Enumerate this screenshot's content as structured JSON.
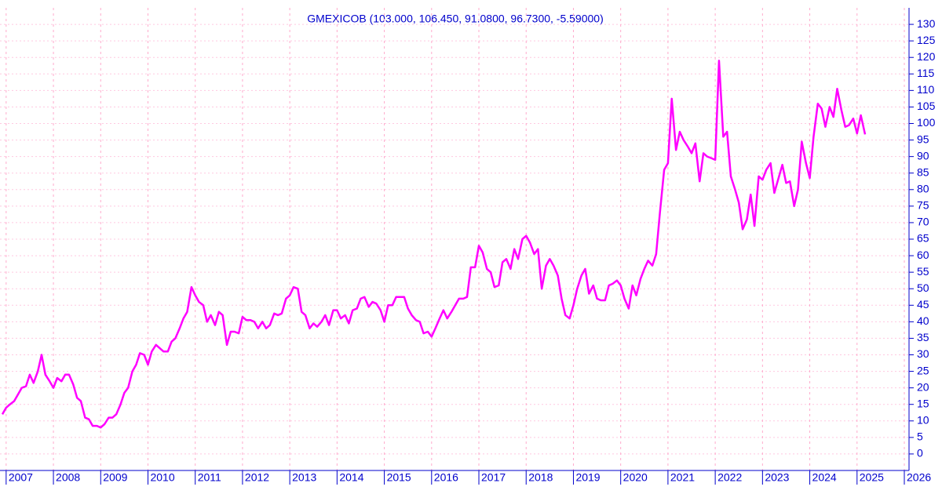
{
  "chart_data": {
    "type": "line",
    "title": "GMEXICOB (103.000, 106.450, 91.0800, 96.7300, -5.59000)",
    "x": [
      2006.92,
      2007.0,
      2007.08,
      2007.17,
      2007.25,
      2007.33,
      2007.42,
      2007.5,
      2007.58,
      2007.67,
      2007.75,
      2007.83,
      2007.92,
      2008.0,
      2008.08,
      2008.17,
      2008.25,
      2008.33,
      2008.42,
      2008.5,
      2008.58,
      2008.67,
      2008.75,
      2008.83,
      2008.92,
      2009.0,
      2009.08,
      2009.17,
      2009.25,
      2009.33,
      2009.42,
      2009.5,
      2009.58,
      2009.67,
      2009.75,
      2009.83,
      2009.92,
      2010.0,
      2010.08,
      2010.17,
      2010.25,
      2010.33,
      2010.42,
      2010.5,
      2010.58,
      2010.67,
      2010.75,
      2010.83,
      2010.92,
      2011.0,
      2011.08,
      2011.17,
      2011.25,
      2011.33,
      2011.42,
      2011.5,
      2011.58,
      2011.67,
      2011.75,
      2011.83,
      2011.92,
      2012.0,
      2012.08,
      2012.17,
      2012.25,
      2012.33,
      2012.42,
      2012.5,
      2012.58,
      2012.67,
      2012.75,
      2012.83,
      2012.92,
      2013.0,
      2013.08,
      2013.17,
      2013.25,
      2013.33,
      2013.42,
      2013.5,
      2013.58,
      2013.67,
      2013.75,
      2013.83,
      2013.92,
      2014.0,
      2014.08,
      2014.17,
      2014.25,
      2014.33,
      2014.42,
      2014.5,
      2014.58,
      2014.67,
      2014.75,
      2014.83,
      2014.92,
      2015.0,
      2015.08,
      2015.17,
      2015.25,
      2015.33,
      2015.42,
      2015.5,
      2015.58,
      2015.67,
      2015.75,
      2015.83,
      2015.92,
      2016.0,
      2016.08,
      2016.17,
      2016.25,
      2016.33,
      2016.42,
      2016.5,
      2016.58,
      2016.67,
      2016.75,
      2016.83,
      2016.92,
      2017.0,
      2017.08,
      2017.17,
      2017.25,
      2017.33,
      2017.42,
      2017.5,
      2017.58,
      2017.67,
      2017.75,
      2017.83,
      2017.92,
      2018.0,
      2018.08,
      2018.17,
      2018.25,
      2018.33,
      2018.42,
      2018.5,
      2018.58,
      2018.67,
      2018.75,
      2018.83,
      2018.92,
      2019.0,
      2019.08,
      2019.17,
      2019.25,
      2019.33,
      2019.42,
      2019.5,
      2019.58,
      2019.67,
      2019.75,
      2019.83,
      2019.92,
      2020.0,
      2020.08,
      2020.17,
      2020.25,
      2020.33,
      2020.42,
      2020.5,
      2020.58,
      2020.67,
      2020.75,
      2020.83,
      2020.92,
      2021.0,
      2021.08,
      2021.17,
      2021.25,
      2021.33,
      2021.42,
      2021.5,
      2021.58,
      2021.67,
      2021.75,
      2021.83,
      2021.92,
      2022.0,
      2022.08,
      2022.17,
      2022.25,
      2022.33,
      2022.42,
      2022.5,
      2022.58,
      2022.67,
      2022.75,
      2022.83,
      2022.92,
      2023.0,
      2023.08,
      2023.17,
      2023.25,
      2023.33,
      2023.42,
      2023.5,
      2023.58,
      2023.67,
      2023.75,
      2023.83,
      2023.92,
      2024.0,
      2024.08,
      2024.17,
      2024.25,
      2024.33,
      2024.42,
      2024.5,
      2024.58,
      2024.67,
      2024.75,
      2024.83,
      2024.92,
      2025.0,
      2025.08,
      2025.17
    ],
    "series": [
      {
        "name": "GMEXICOB",
        "color": "#ff00ff",
        "values": [
          12,
          14,
          15,
          16,
          18,
          20,
          20.5,
          24,
          21.5,
          25,
          30,
          24,
          22,
          20,
          23,
          22,
          24,
          24,
          21,
          17,
          16,
          11,
          10.5,
          8.5,
          8.5,
          8,
          9,
          11,
          11,
          12,
          15,
          18.5,
          20,
          25,
          27,
          30.5,
          30,
          27,
          31,
          33,
          32,
          31,
          31,
          34,
          35,
          38,
          41,
          43,
          50.5,
          48,
          46,
          45,
          40,
          42,
          39,
          43,
          42,
          33,
          37,
          37,
          36.5,
          41.5,
          40.5,
          40.5,
          40,
          38,
          40,
          38,
          39,
          42.5,
          42,
          42.5,
          47,
          48,
          50.5,
          50,
          43,
          42,
          38,
          39.5,
          38.5,
          40,
          42,
          39,
          43.5,
          43.5,
          41,
          42,
          39.5,
          43.5,
          44,
          47,
          47.5,
          44.5,
          46,
          45.5,
          43.5,
          40,
          45,
          45,
          47.5,
          47.5,
          47.5,
          44,
          42,
          40.5,
          40,
          36.5,
          37,
          35.5,
          38,
          41,
          43.5,
          41,
          43,
          45,
          47,
          47,
          47.5,
          56.5,
          56.5,
          63,
          61,
          56,
          55,
          50.5,
          51,
          58,
          59,
          56,
          62,
          59,
          65,
          66,
          64,
          60.5,
          62,
          50,
          57,
          59,
          57,
          54,
          47,
          42,
          41,
          45,
          50,
          54,
          56,
          48.5,
          51,
          47,
          46.5,
          46.5,
          51,
          51.5,
          52.5,
          51,
          47,
          44,
          51,
          48,
          53,
          56,
          58.5,
          57,
          60.5,
          73,
          86,
          88,
          107.5,
          92,
          97.5,
          95,
          93,
          91,
          94,
          82.5,
          91,
          90,
          89.5,
          89,
          119,
          96,
          97.5,
          84,
          80,
          76,
          68,
          71,
          78.5,
          69,
          84,
          83,
          86,
          88,
          79,
          83,
          87.5,
          82,
          82.5,
          75,
          80,
          94.5,
          88,
          83.5,
          96,
          106,
          104.5,
          99,
          105,
          102,
          110.5,
          104,
          99,
          99.5,
          101.5,
          97,
          102.5,
          96.7
        ]
      }
    ],
    "xlim": [
      2006.87,
      2026.0
    ],
    "xticks": [
      2007,
      2008,
      2009,
      2010,
      2011,
      2012,
      2013,
      2014,
      2015,
      2016,
      2017,
      2018,
      2019,
      2020,
      2021,
      2022,
      2023,
      2024,
      2025,
      2026
    ],
    "ylim": [
      -5,
      135
    ],
    "yticks": [
      0,
      5,
      10,
      15,
      20,
      25,
      30,
      35,
      40,
      45,
      50,
      55,
      60,
      65,
      70,
      75,
      80,
      85,
      90,
      95,
      100,
      105,
      110,
      115,
      120,
      125,
      130
    ],
    "grid": true
  }
}
